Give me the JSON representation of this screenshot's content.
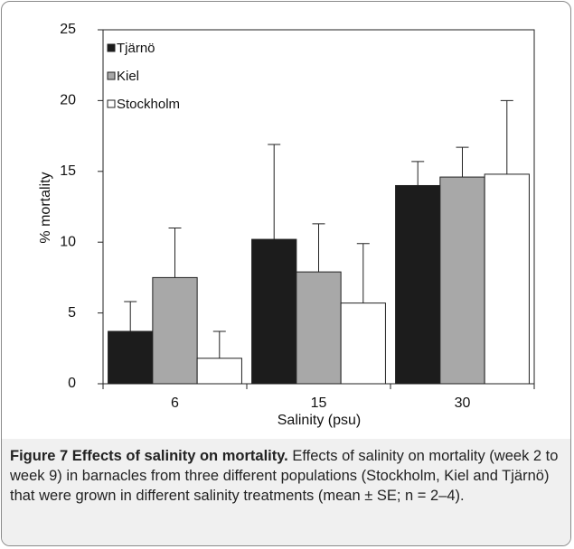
{
  "chart_data": {
    "type": "bar",
    "y_label": "% mortality",
    "x_label": "Salinity (psu)",
    "categories": [
      "6",
      "15",
      "30"
    ],
    "series": [
      {
        "name": "Tjärnö",
        "color": "#1c1c1c",
        "values": [
          3.7,
          10.2,
          14.0
        ],
        "errors": [
          2.1,
          6.7,
          1.7
        ]
      },
      {
        "name": "Kiel",
        "color": "#a8a8a8",
        "values": [
          7.5,
          7.9,
          14.6
        ],
        "errors": [
          3.5,
          3.4,
          2.1
        ]
      },
      {
        "name": "Stockholm",
        "color": "#ffffff",
        "values": [
          1.8,
          5.7,
          14.8
        ],
        "errors": [
          1.9,
          4.2,
          5.2
        ]
      }
    ],
    "ylim": [
      0,
      25
    ],
    "yticks": [
      0,
      5,
      10,
      15,
      20,
      25
    ],
    "legend": "upper left",
    "grid": false
  },
  "caption": {
    "label": "Figure 7",
    "title": "Effects of salinity on mortality.",
    "text": "Effects of salinity on mortality (week 2 to week 9) in barnacles from three different populations (Stockholm, Kiel and Tjärnö) that were grown in different salinity treatments (mean ± SE; n = 2–4)."
  }
}
